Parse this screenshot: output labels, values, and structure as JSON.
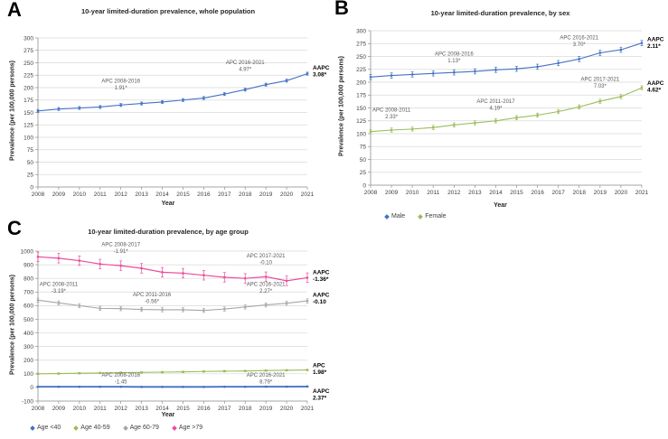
{
  "colors": {
    "blue": "#4472C4",
    "green": "#9BBB59",
    "gray": "#A6A6A6",
    "pink": "#EC4A9B",
    "annotation_text": "#595959",
    "axis_text": "#404040",
    "gridline": "#D9D9D9",
    "axis_line": "#909090",
    "title_text": "#262626",
    "label_text": "#000000"
  },
  "chart_data": [
    {
      "panel_label": "A",
      "type": "line",
      "title": "10-year limited-duration prevalence, whole population",
      "xlabel": "Year",
      "ylabel": "Prevalence (per 100,000 persons)",
      "x": [
        2008,
        2009,
        2010,
        2011,
        2012,
        2013,
        2014,
        2015,
        2016,
        2017,
        2018,
        2019,
        2020,
        2021
      ],
      "ylim": [
        0,
        300
      ],
      "ytick_step": 25,
      "grid": true,
      "show_legend": false,
      "series": [
        {
          "name": "Whole population",
          "color_key": "blue",
          "err": 3,
          "lw": 1.1,
          "values": [
            153,
            157,
            159,
            161,
            165,
            168,
            171,
            175,
            179,
            187,
            196,
            206,
            214,
            228
          ]
        }
      ],
      "annotations": [
        {
          "x": 2012,
          "y": 210,
          "lines": [
            "APC 2008-2016",
            "1.91*"
          ]
        },
        {
          "x": 2018,
          "y": 247,
          "lines": [
            "APC 2016-2021",
            "4.97*"
          ]
        }
      ],
      "right_labels": [
        {
          "y": 236,
          "lines": [
            "AAPC",
            "3.08*"
          ]
        }
      ]
    },
    {
      "panel_label": "B",
      "type": "line",
      "title": "10-year limited-duration prevalence, by sex",
      "xlabel": "Year",
      "ylabel": "Prevalence (per 100,000 persons)",
      "x": [
        2008,
        2009,
        2010,
        2011,
        2012,
        2013,
        2014,
        2015,
        2016,
        2017,
        2018,
        2019,
        2020,
        2021
      ],
      "ylim": [
        0,
        300
      ],
      "ytick_step": 25,
      "grid": true,
      "show_legend": true,
      "legend_labels": [
        "Male",
        "Female"
      ],
      "series": [
        {
          "name": "Male",
          "color_key": "blue",
          "err": 5,
          "lw": 1.1,
          "values": [
            210,
            213,
            215,
            217,
            219,
            221,
            224,
            226,
            230,
            237,
            245,
            257,
            263,
            276
          ]
        },
        {
          "name": "Female",
          "color_key": "green",
          "err": 4,
          "lw": 1.1,
          "values": [
            104,
            107,
            109,
            112,
            117,
            121,
            125,
            131,
            136,
            143,
            152,
            163,
            172,
            189
          ]
        }
      ],
      "annotations": [
        {
          "x": 2012,
          "y": 252,
          "lines": [
            "APC 2008-2016",
            "1.13*"
          ]
        },
        {
          "x": 2018,
          "y": 283,
          "lines": [
            "APC 2016-2021",
            "3.70*"
          ]
        },
        {
          "x": 2009,
          "y": 143,
          "lines": [
            "APC 2008-2011",
            "2.33*"
          ]
        },
        {
          "x": 2014,
          "y": 160,
          "lines": [
            "APC 2011-2017",
            "4.19*"
          ]
        },
        {
          "x": 2019,
          "y": 203,
          "lines": [
            "APC 2017-2021",
            "7.03*"
          ]
        }
      ],
      "right_labels": [
        {
          "y": 280,
          "lines": [
            "AAPC",
            "2.11*"
          ]
        },
        {
          "y": 195,
          "lines": [
            "AAPC",
            "4.62*"
          ]
        }
      ]
    },
    {
      "panel_label": "C",
      "type": "line",
      "title": "10-year limited-duration prevalence, by age group",
      "xlabel": "Year",
      "ylabel": "Prevalence (per 100,000 persons)",
      "x": [
        2008,
        2009,
        2010,
        2011,
        2012,
        2013,
        2014,
        2015,
        2016,
        2017,
        2018,
        2019,
        2020,
        2021
      ],
      "ylim": [
        -100,
        1000
      ],
      "ytick_step": 100,
      "grid": true,
      "show_legend": true,
      "legend_labels": [
        "Age <40",
        "Age 40-59",
        "Age 60-79",
        "Age >79"
      ],
      "series": [
        {
          "name": "Age <40",
          "color_key": "blue",
          "err": 3,
          "lw": 1.8,
          "values": [
            5,
            5,
            5,
            5,
            5,
            4,
            4,
            4,
            4,
            5,
            5,
            6,
            6,
            7
          ]
        },
        {
          "name": "Age 40-59",
          "color_key": "green",
          "err": 5,
          "lw": 1.1,
          "values": [
            100,
            102,
            104,
            106,
            108,
            110,
            112,
            114,
            117,
            119,
            121,
            124,
            126,
            128
          ]
        },
        {
          "name": "Age 60-79",
          "color_key": "gray",
          "err": 15,
          "lw": 1.1,
          "values": [
            640,
            620,
            600,
            580,
            578,
            572,
            570,
            570,
            565,
            575,
            590,
            605,
            618,
            635
          ]
        },
        {
          "name": "Age >79",
          "color_key": "pink",
          "err": 35,
          "lw": 1.2,
          "values": [
            958,
            948,
            930,
            905,
            893,
            874,
            845,
            838,
            823,
            808,
            800,
            812,
            782,
            805
          ]
        }
      ],
      "annotations": [
        {
          "x": 2012,
          "y": 1035,
          "lines": [
            "APC 2008-2017",
            "-1.91*"
          ]
        },
        {
          "x": 2019,
          "y": 955,
          "lines": [
            "APC 2017-2021",
            "-0.10"
          ]
        },
        {
          "x": 2009,
          "y": 745,
          "lines": [
            "APC 2008-2011",
            "-3.19*"
          ]
        },
        {
          "x": 2013.5,
          "y": 668,
          "lines": [
            "APC 2011-2016",
            "-0.56*"
          ]
        },
        {
          "x": 2019,
          "y": 745,
          "lines": [
            "APC 2016-2021",
            "2.27*"
          ]
        },
        {
          "x": 2012,
          "y": 80,
          "lines": [
            "APC 2008-2016",
            "-1.45"
          ]
        },
        {
          "x": 2019,
          "y": 80,
          "lines": [
            "APC 2016-2021",
            "8.79*"
          ]
        }
      ],
      "right_labels": [
        {
          "y": 830,
          "lines": [
            "AAPC",
            "-1.36*"
          ]
        },
        {
          "y": 665,
          "lines": [
            "AAPC",
            "-0.10"
          ]
        },
        {
          "y": 150,
          "lines": [
            "APC",
            "1.98*"
          ]
        },
        {
          "y": -40,
          "lines": [
            "AAPC",
            "2.37*"
          ]
        }
      ]
    }
  ]
}
